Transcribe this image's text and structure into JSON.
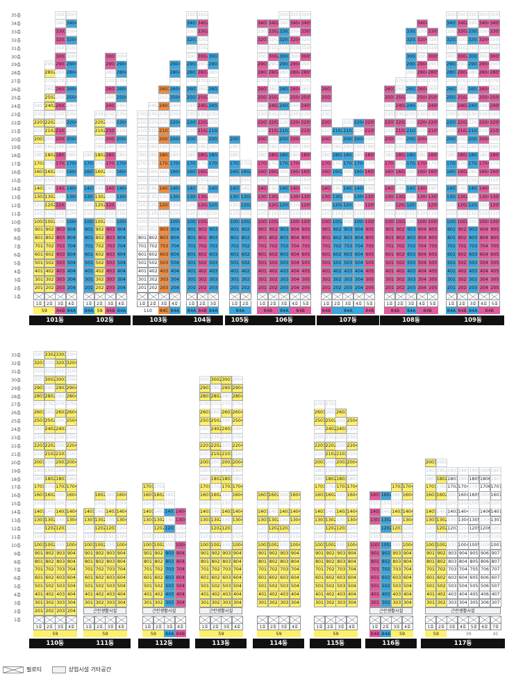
{
  "legend": {
    "piloti": "필로티",
    "commercial": "상업시설 기타공간"
  },
  "commercial_label": "근린생활시설",
  "colors": {
    "59": "#fff06a",
    "84A": "#3aa6dd",
    "84B": "#e35a9c",
    "84C": "#f28a3a",
    "39": "#ffffff",
    "41": "#ffffff"
  },
  "floors_top": [
    "35층",
    "34층",
    "33층",
    "32층",
    "31층",
    "30층",
    "29층",
    "28층",
    "27층",
    "26층",
    "25층",
    "24층",
    "23층",
    "22층",
    "21층",
    "20층",
    "19층",
    "18층",
    "17층",
    "16층",
    "15층",
    "14층",
    "13층",
    "12층",
    "11층",
    "10층",
    "9층",
    "8층",
    "7층",
    "6층",
    "5층",
    "4층",
    "3층",
    "2층",
    "1층"
  ],
  "floors_bottom": [
    "33층",
    "32층",
    "31층",
    "30층",
    "29층",
    "28층",
    "27층",
    "26층",
    "25층",
    "24층",
    "23층",
    "22층",
    "21층",
    "20층",
    "19층",
    "18층",
    "17층",
    "16층",
    "15층",
    "14층",
    "13층",
    "12층",
    "11층",
    "10층",
    "9층",
    "8층",
    "7층",
    "6층",
    "5층",
    "4층",
    "3층",
    "2층",
    "1층"
  ],
  "buildings": [
    {
      "name": "101동",
      "lines": [
        {
          "label": "1호",
          "type": "59",
          "top": 24
        },
        {
          "label": "2호",
          "type": "59",
          "top": 29
        },
        {
          "label": "3호",
          "type": "84B",
          "top": 35
        },
        {
          "label": "4호",
          "type": "84A",
          "top": 35
        }
      ],
      "types": [
        {
          "label": "59",
          "span": 2
        },
        {
          "label": "84B",
          "span": 1
        },
        {
          "label": "84A",
          "span": 1
        }
      ]
    },
    {
      "name": "102동",
      "lines": [
        {
          "label": "1호",
          "type": "84A",
          "top": 18
        },
        {
          "label": "2호",
          "type": "59",
          "top": 23
        },
        {
          "label": "3호",
          "type": "84B",
          "top": 30
        },
        {
          "label": "4호",
          "type": "84A",
          "top": 30
        }
      ],
      "types": [
        {
          "label": "84A",
          "span": 1
        },
        {
          "label": "59",
          "span": 1
        },
        {
          "label": "84B",
          "span": 1
        },
        {
          "label": "84A",
          "span": 1
        }
      ]
    },
    {
      "name": "103동",
      "lines": [
        {
          "label": "1호",
          "type": "110",
          "top": 23
        },
        {
          "label": "2호",
          "type": "110",
          "top": 24
        },
        {
          "label": "3호",
          "type": "84C",
          "top": 26
        },
        {
          "label": "4호",
          "type": "84A",
          "top": 29
        }
      ],
      "types": [
        {
          "label": "110",
          "span": 2
        },
        {
          "label": "84C",
          "span": 1
        },
        {
          "label": "84A",
          "span": 1
        }
      ]
    },
    {
      "name": "104동",
      "lines": [
        {
          "label": "1호",
          "type": "84A",
          "top": 35
        },
        {
          "label": "2호",
          "type": "84B",
          "top": 35
        },
        {
          "label": "3호",
          "type": "84A",
          "top": 30
        }
      ],
      "types": [
        {
          "label": "84A",
          "span": 1
        },
        {
          "label": "84B",
          "span": 1
        },
        {
          "label": "84A",
          "span": 1
        }
      ]
    },
    {
      "name": "105동",
      "lines": [
        {
          "label": "1호",
          "type": "84A",
          "top": 20
        },
        {
          "label": "2호",
          "type": "84A",
          "top": 17
        }
      ],
      "types": [
        {
          "label": "84A",
          "span": 2
        }
      ]
    },
    {
      "name": "106동",
      "lines": [
        {
          "label": "1호",
          "type": "84B",
          "top": 34
        },
        {
          "label": "2호",
          "type": "84B",
          "top": 34
        },
        {
          "label": "3호",
          "type": "84A",
          "top": 35
        },
        {
          "label": "4호",
          "type": "84B",
          "top": 35
        },
        {
          "label": "5호",
          "type": "84B",
          "top": 35
        }
      ],
      "types": [
        {
          "label": "84B",
          "span": 2
        },
        {
          "label": "84A",
          "span": 1
        },
        {
          "label": "84B",
          "span": 2
        }
      ]
    },
    {
      "name": "107동",
      "lines": [
        {
          "label": "1호",
          "type": "84B",
          "top": 26
        },
        {
          "label": "2호",
          "type": "84A",
          "top": 21
        },
        {
          "label": "3호",
          "type": "84A",
          "top": 22
        },
        {
          "label": "4호",
          "type": "84A",
          "top": 22
        },
        {
          "label": "5호",
          "type": "84B",
          "top": 22
        }
      ],
      "types": [
        {
          "label": "84B",
          "span": 1
        },
        {
          "label": "84A",
          "span": 3
        },
        {
          "label": "84B",
          "span": 1
        }
      ]
    },
    {
      "name": "108동",
      "lines": [
        {
          "label": "1호",
          "type": "84B",
          "top": 26
        },
        {
          "label": "2호",
          "type": "84B",
          "top": 27
        },
        {
          "label": "3호",
          "type": "84A",
          "top": 33
        },
        {
          "label": "4호",
          "type": "84B",
          "top": 34
        },
        {
          "label": "5호",
          "type": "84B",
          "top": 33
        }
      ],
      "types": [
        {
          "label": "84B",
          "span": 2
        },
        {
          "label": "84A",
          "span": 1
        },
        {
          "label": "84B",
          "span": 2
        }
      ]
    },
    {
      "name": "109동",
      "lines": [
        {
          "label": "1호",
          "type": "84A",
          "top": 35
        },
        {
          "label": "2호",
          "type": "84B",
          "top": 35
        },
        {
          "label": "3호",
          "type": "84A",
          "top": 35
        },
        {
          "label": "4호",
          "type": "84B",
          "top": 35
        },
        {
          "label": "5호",
          "type": "84B",
          "top": 35
        }
      ],
      "types": [
        {
          "label": "84A",
          "span": 1
        },
        {
          "label": "84B",
          "span": 1
        },
        {
          "label": "84A",
          "span": 1
        },
        {
          "label": "84B",
          "span": 2
        }
      ]
    },
    {
      "name": "110동",
      "lines": [
        {
          "label": "1호",
          "type": "59",
          "top": 33
        },
        {
          "label": "2호",
          "type": "59",
          "top": 33
        },
        {
          "label": "3호",
          "type": "59",
          "top": 33
        },
        {
          "label": "4호",
          "type": "59",
          "top": 33
        }
      ],
      "types": [
        {
          "label": "59",
          "span": 4
        }
      ]
    },
    {
      "name": "111동",
      "lines": [
        {
          "label": "1호",
          "type": "59",
          "top": 14
        },
        {
          "label": "2호",
          "type": "59",
          "top": 16
        },
        {
          "label": "3호",
          "type": "59",
          "top": 16
        },
        {
          "label": "4호",
          "type": "59",
          "top": 16
        }
      ],
      "types": [
        {
          "label": "59",
          "span": 4
        }
      ]
    },
    {
      "name": "112동",
      "lines": [
        {
          "label": "1호",
          "type": "59",
          "top": 17
        },
        {
          "label": "2호",
          "type": "59",
          "top": 17
        },
        {
          "label": "3호",
          "type": "84A",
          "top": 16
        },
        {
          "label": "4호",
          "type": "84B",
          "top": 14
        }
      ],
      "types": [
        {
          "label": "59",
          "span": 2
        },
        {
          "label": "84A",
          "span": 1
        },
        {
          "label": "84B",
          "span": 1
        }
      ]
    },
    {
      "name": "113동",
      "lines": [
        {
          "label": "1호",
          "type": "59",
          "top": 30
        },
        {
          "label": "2호",
          "type": "59",
          "top": 30
        },
        {
          "label": "3호",
          "type": "59",
          "top": 30
        },
        {
          "label": "4호",
          "type": "59",
          "top": 30
        }
      ],
      "types": [
        {
          "label": "59",
          "span": 4
        }
      ]
    },
    {
      "name": "114동",
      "lines": [
        {
          "label": "1호",
          "type": "59",
          "top": 16
        },
        {
          "label": "2호",
          "type": "59",
          "top": 16
        },
        {
          "label": "3호",
          "type": "59",
          "top": 16
        },
        {
          "label": "4호",
          "type": "59",
          "top": 16
        }
      ],
      "types": [
        {
          "label": "59",
          "span": 4
        }
      ]
    },
    {
      "name": "115동",
      "lines": [
        {
          "label": "1호",
          "type": "59",
          "top": 27
        },
        {
          "label": "2호",
          "type": "59",
          "top": 27
        },
        {
          "label": "3호",
          "type": "59",
          "top": 26
        },
        {
          "label": "4호",
          "type": "59",
          "top": 25
        }
      ],
      "types": [
        {
          "label": "59",
          "span": 4
        }
      ]
    },
    {
      "name": "116동",
      "lines": [
        {
          "label": "1호",
          "type": "84B",
          "top": 16
        },
        {
          "label": "2호",
          "type": "84A",
          "top": 16
        },
        {
          "label": "3호",
          "type": "59",
          "top": 17
        },
        {
          "label": "4호",
          "type": "59",
          "top": 17
        }
      ],
      "types": [
        {
          "label": "84B",
          "span": 1
        },
        {
          "label": "84A",
          "span": 1
        },
        {
          "label": "59",
          "span": 2
        }
      ]
    },
    {
      "name": "117동",
      "lines": [
        {
          "label": "1호",
          "type": "59",
          "top": 20
        },
        {
          "label": "2호",
          "type": "59",
          "top": 20
        },
        {
          "label": "3호",
          "type": "39",
          "top": 19
        },
        {
          "label": "4호",
          "type": "39",
          "top": 19
        },
        {
          "label": "5호",
          "type": "39",
          "top": 19
        },
        {
          "label": "6호",
          "type": "39",
          "top": 19
        },
        {
          "label": "7호",
          "type": "41",
          "top": 19
        }
      ],
      "types": [
        {
          "label": "59",
          "span": 2
        },
        {
          "label": "39",
          "span": 4
        },
        {
          "label": "41",
          "span": 1
        }
      ]
    }
  ]
}
